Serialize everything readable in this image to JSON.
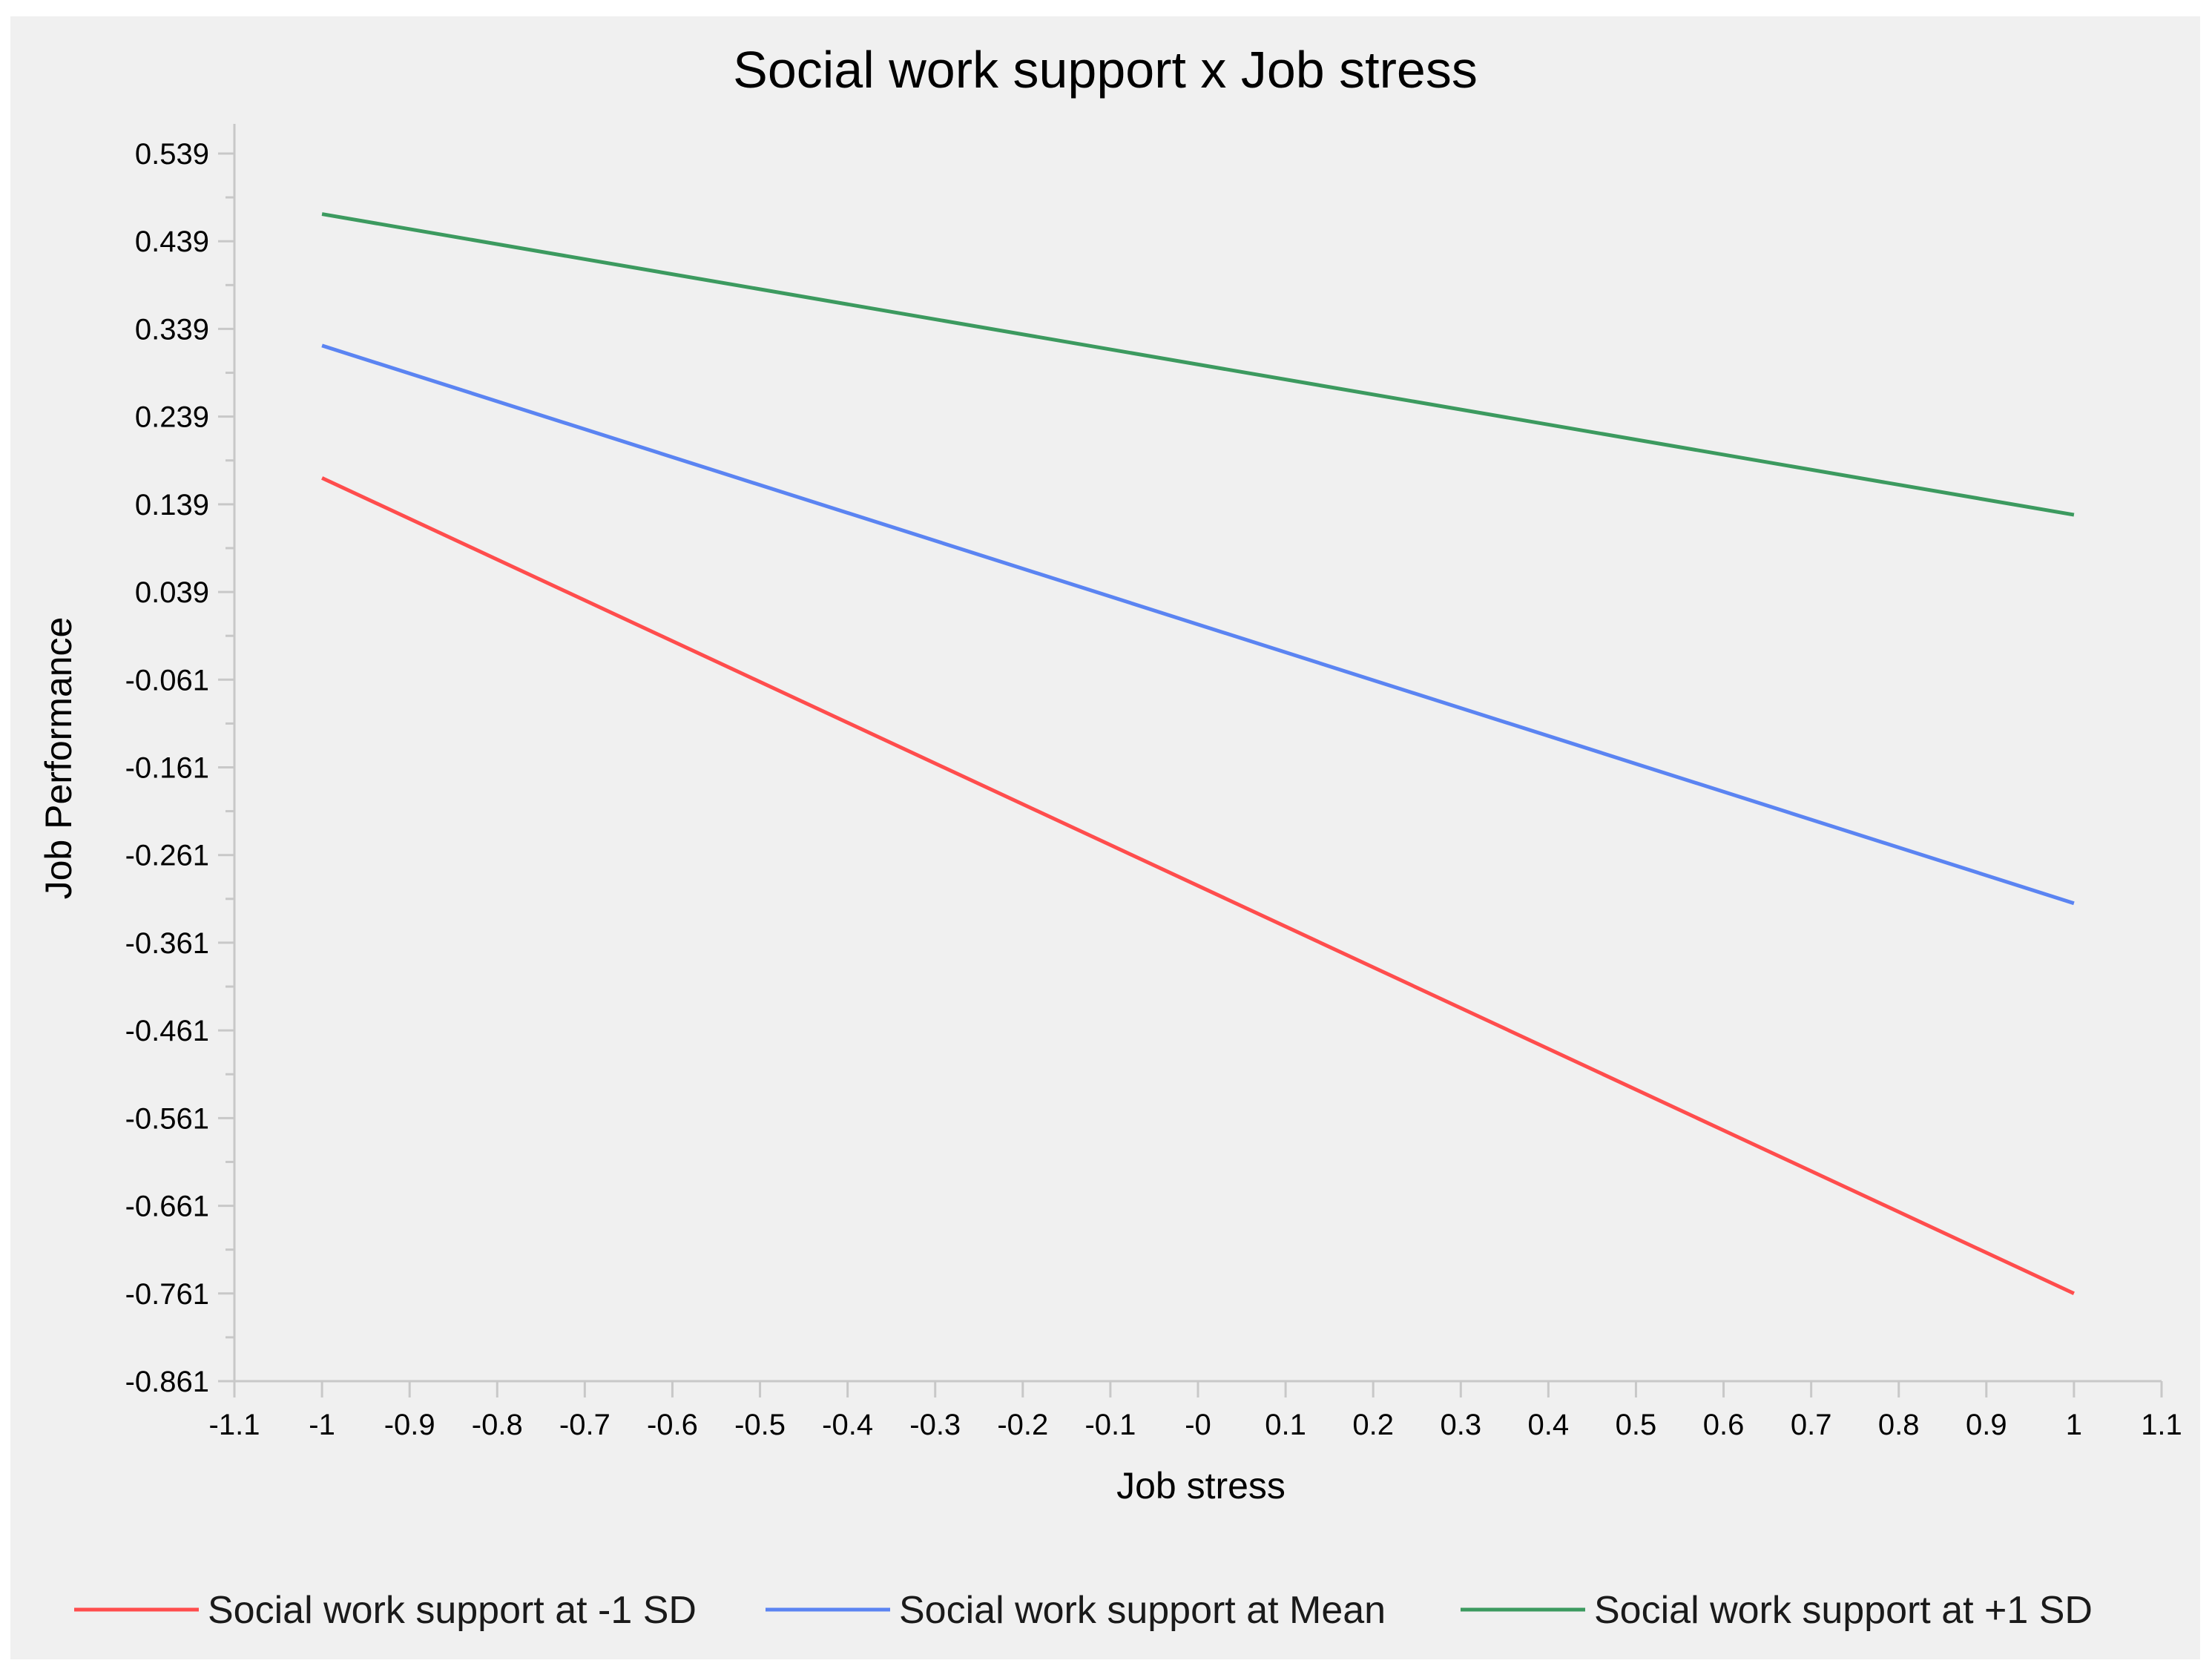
{
  "chart_data": {
    "type": "line",
    "title": "Social work support x Job stress",
    "xlabel": "Job stress",
    "ylabel": "Job Performance",
    "xlim": [
      -1.1,
      1.1
    ],
    "ylim": [
      -0.861,
      0.589
    ],
    "x_ticks": [
      "-1.1",
      "-1",
      "-0.9",
      "-0.8",
      "-0.7",
      "-0.6",
      "-0.5",
      "-0.4",
      "-0.3",
      "-0.2",
      "-0.1",
      "-0",
      "0.1",
      "0.2",
      "0.3",
      "0.4",
      "0.5",
      "0.6",
      "0.7",
      "0.8",
      "0.9",
      "1",
      "1.1"
    ],
    "y_ticks": [
      "0.539",
      "0.439",
      "0.339",
      "0.239",
      "0.139",
      "0.039",
      "-0.061",
      "-0.161",
      "-0.261",
      "-0.361",
      "-0.461",
      "-0.561",
      "-0.661",
      "-0.761",
      "-0.861"
    ],
    "grid": false,
    "legend_position": "bottom",
    "series": [
      {
        "name": "Social work support at -1 SD",
        "color": "#ff4d4d",
        "x": [
          -1,
          1
        ],
        "y": [
          0.169,
          -0.761
        ]
      },
      {
        "name": "Social work support at Mean",
        "color": "#5b84f2",
        "x": [
          -1,
          1
        ],
        "y": [
          0.32,
          -0.316
        ]
      },
      {
        "name": "Social work support at +1 SD",
        "color": "#3c9a5f",
        "x": [
          -1,
          1
        ],
        "y": [
          0.47,
          0.127
        ]
      }
    ]
  }
}
